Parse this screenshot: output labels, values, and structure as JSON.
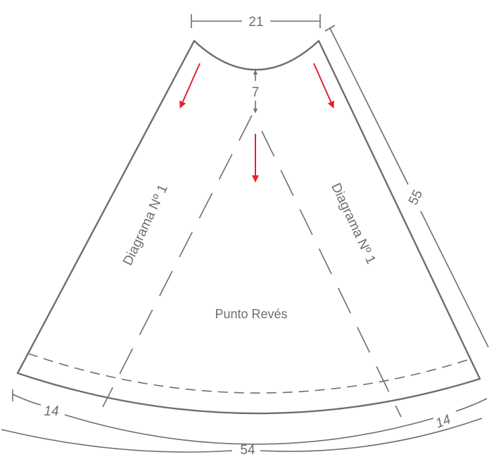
{
  "labels": {
    "top_width": "21",
    "depth": "7",
    "side_length": "55",
    "bottom_left": "14",
    "bottom_right": "14",
    "bottom_width": "54",
    "diagram_left": "Diagrama Nº 1",
    "diagram_right": "Diagrama Nº 1",
    "center_stitch": "Punto Revés"
  },
  "colors": {
    "outline": "#6d6e70",
    "arrow": "#e5202e",
    "background": "#ffffff"
  }
}
